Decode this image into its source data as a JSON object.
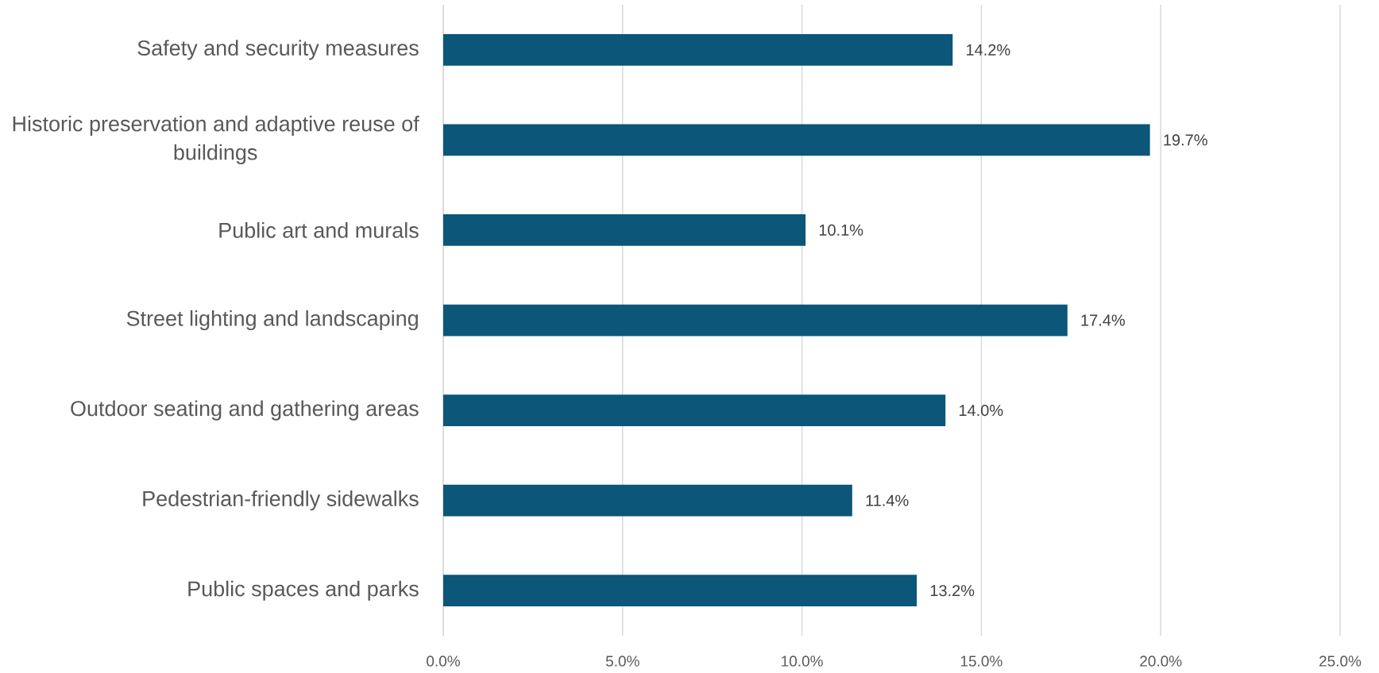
{
  "chart_data": {
    "type": "bar",
    "orientation": "horizontal",
    "categories": [
      "Safety and security measures",
      "Historic preservation and adaptive reuse of buildings",
      "Public art and murals",
      "Street lighting and landscaping",
      "Outdoor seating and gathering areas",
      "Pedestrian-friendly sidewalks",
      "Public spaces and parks"
    ],
    "values": [
      14.2,
      19.7,
      10.1,
      17.4,
      14.0,
      11.4,
      13.2
    ],
    "value_labels": [
      "14.2%",
      "19.7%",
      "10.1%",
      "17.4%",
      "14.0%",
      "11.4%",
      "13.2%"
    ],
    "color": "#0b5679",
    "xlim": [
      0,
      25
    ],
    "xticks": [
      {
        "value": 0,
        "label": "0.0%"
      },
      {
        "value": 5,
        "label": "5.0%"
      },
      {
        "value": 10,
        "label": "10.0%"
      },
      {
        "value": 15,
        "label": "15.0%"
      },
      {
        "value": 20,
        "label": "20.0%"
      },
      {
        "value": 25,
        "label": "25.0%"
      }
    ],
    "grid": "x"
  }
}
